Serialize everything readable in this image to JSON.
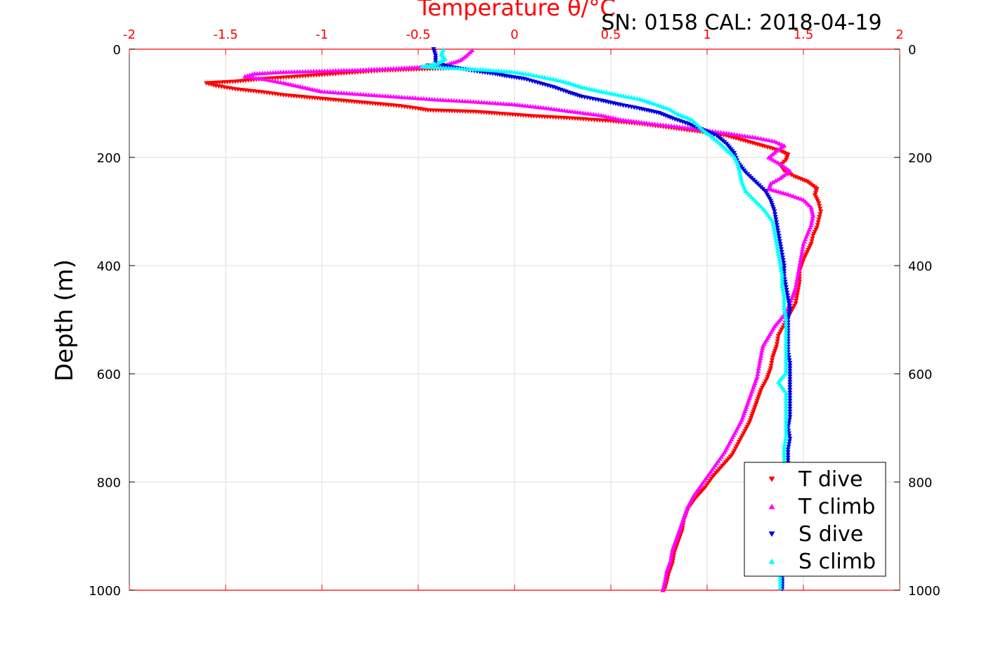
{
  "chart_data": {
    "type": "scatter",
    "title": "Temperature θ/°C",
    "subtitle": "SN: 0158  CAL: 2018-04-19",
    "xlabel": "Temperature θ/°C",
    "ylabel": "Depth (m)",
    "xlim": [
      -2,
      2
    ],
    "ylim": [
      0,
      1000
    ],
    "y_reversed": true,
    "x_axis_position": "top",
    "x_ticks": [
      "-2",
      "-1.5",
      "-1",
      "-0.5",
      "0",
      "0.5",
      "1",
      "1.5",
      "2"
    ],
    "y_ticks": [
      "0",
      "200",
      "400",
      "600",
      "800",
      "1000"
    ],
    "grid": true,
    "legend_placement": "bottom-right",
    "colors": {
      "axis_top": "#ff0000",
      "grid": "#dddddd"
    },
    "series": [
      {
        "name": "T dive",
        "color": "#ff0000",
        "marker": "triangle-down",
        "points": [
          [
            -0.45,
            30
          ],
          [
            -0.3,
            35
          ],
          [
            -0.55,
            38
          ],
          [
            -0.7,
            40
          ],
          [
            -0.9,
            45
          ],
          [
            -1.1,
            50
          ],
          [
            -1.3,
            55
          ],
          [
            -1.45,
            60
          ],
          [
            -1.6,
            63
          ],
          [
            -1.55,
            68
          ],
          [
            -1.45,
            74
          ],
          [
            -1.3,
            80
          ],
          [
            -1.2,
            85
          ],
          [
            -1.05,
            90
          ],
          [
            -0.9,
            95
          ],
          [
            -0.75,
            100
          ],
          [
            -0.6,
            105
          ],
          [
            -0.5,
            110
          ],
          [
            -0.45,
            113
          ],
          [
            -0.2,
            116
          ],
          [
            -0.05,
            120
          ],
          [
            0.1,
            124
          ],
          [
            0.3,
            128
          ],
          [
            0.5,
            133
          ],
          [
            0.65,
            138
          ],
          [
            0.8,
            145
          ],
          [
            0.95,
            152
          ],
          [
            1.1,
            160
          ],
          [
            1.2,
            170
          ],
          [
            1.3,
            180
          ],
          [
            1.38,
            188
          ],
          [
            1.42,
            195
          ],
          [
            1.41,
            205
          ],
          [
            1.38,
            215
          ],
          [
            1.4,
            225
          ],
          [
            1.45,
            235
          ],
          [
            1.52,
            245
          ],
          [
            1.57,
            258
          ],
          [
            1.56,
            270
          ],
          [
            1.58,
            285
          ],
          [
            1.59,
            300
          ],
          [
            1.58,
            315
          ],
          [
            1.57,
            330
          ],
          [
            1.55,
            345
          ],
          [
            1.54,
            360
          ],
          [
            1.52,
            375
          ],
          [
            1.5,
            390
          ],
          [
            1.48,
            410
          ],
          [
            1.48,
            430
          ],
          [
            1.47,
            450
          ],
          [
            1.46,
            470
          ],
          [
            1.43,
            490
          ],
          [
            1.4,
            510
          ],
          [
            1.37,
            530
          ],
          [
            1.36,
            550
          ],
          [
            1.34,
            570
          ],
          [
            1.33,
            590
          ],
          [
            1.31,
            610
          ],
          [
            1.28,
            630
          ],
          [
            1.26,
            650
          ],
          [
            1.24,
            670
          ],
          [
            1.22,
            690
          ],
          [
            1.19,
            710
          ],
          [
            1.16,
            730
          ],
          [
            1.13,
            750
          ],
          [
            1.08,
            770
          ],
          [
            1.03,
            790
          ],
          [
            0.99,
            810
          ],
          [
            0.94,
            830
          ],
          [
            0.9,
            850
          ],
          [
            0.88,
            870
          ],
          [
            0.87,
            890
          ],
          [
            0.85,
            910
          ],
          [
            0.83,
            930
          ],
          [
            0.82,
            950
          ],
          [
            0.8,
            970
          ],
          [
            0.79,
            985
          ],
          [
            0.78,
            998
          ]
        ]
      },
      {
        "name": "T climb",
        "color": "#ff00ff",
        "marker": "triangle-up",
        "points": [
          [
            -0.22,
            2
          ],
          [
            -0.25,
            12
          ],
          [
            -0.28,
            20
          ],
          [
            -0.35,
            28
          ],
          [
            -0.45,
            32
          ],
          [
            -0.6,
            35
          ],
          [
            -0.8,
            38
          ],
          [
            -1.0,
            40
          ],
          [
            -1.2,
            42
          ],
          [
            -1.35,
            45
          ],
          [
            -1.4,
            50
          ],
          [
            -1.3,
            55
          ],
          [
            -1.2,
            62
          ],
          [
            -1.1,
            70
          ],
          [
            -1.0,
            78
          ],
          [
            -0.8,
            83
          ],
          [
            -0.6,
            88
          ],
          [
            -0.4,
            93
          ],
          [
            -0.2,
            97
          ],
          [
            0.0,
            102
          ],
          [
            0.15,
            108
          ],
          [
            0.3,
            115
          ],
          [
            0.45,
            122
          ],
          [
            0.55,
            130
          ],
          [
            0.7,
            137
          ],
          [
            0.9,
            145
          ],
          [
            1.1,
            155
          ],
          [
            1.25,
            163
          ],
          [
            1.35,
            170
          ],
          [
            1.4,
            178
          ],
          [
            1.36,
            188
          ],
          [
            1.32,
            200
          ],
          [
            1.38,
            212
          ],
          [
            1.43,
            225
          ],
          [
            1.38,
            238
          ],
          [
            1.33,
            248
          ],
          [
            1.32,
            258
          ],
          [
            1.42,
            268
          ],
          [
            1.5,
            278
          ],
          [
            1.54,
            292
          ],
          [
            1.55,
            308
          ],
          [
            1.54,
            325
          ],
          [
            1.52,
            342
          ],
          [
            1.5,
            360
          ],
          [
            1.49,
            380
          ],
          [
            1.48,
            400
          ],
          [
            1.47,
            420
          ],
          [
            1.46,
            440
          ],
          [
            1.44,
            460
          ],
          [
            1.42,
            478
          ],
          [
            1.39,
            495
          ],
          [
            1.35,
            512
          ],
          [
            1.32,
            530
          ],
          [
            1.29,
            548
          ],
          [
            1.28,
            566
          ],
          [
            1.27,
            585
          ],
          [
            1.26,
            605
          ],
          [
            1.24,
            625
          ],
          [
            1.22,
            645
          ],
          [
            1.2,
            665
          ],
          [
            1.18,
            685
          ],
          [
            1.15,
            705
          ],
          [
            1.12,
            725
          ],
          [
            1.09,
            745
          ],
          [
            1.05,
            765
          ],
          [
            1.01,
            785
          ],
          [
            0.97,
            805
          ],
          [
            0.93,
            825
          ],
          [
            0.9,
            845
          ],
          [
            0.88,
            865
          ],
          [
            0.86,
            885
          ],
          [
            0.84,
            905
          ],
          [
            0.82,
            925
          ],
          [
            0.81,
            945
          ],
          [
            0.79,
            965
          ],
          [
            0.78,
            985
          ],
          [
            0.77,
            1000
          ]
        ]
      },
      {
        "name": "S dive",
        "color": "#0000dd",
        "marker": "triangle-down",
        "points": [
          [
            -0.42,
            0
          ],
          [
            -0.41,
            12
          ],
          [
            -0.41,
            25
          ],
          [
            -0.35,
            32
          ],
          [
            -0.28,
            36
          ],
          [
            -0.18,
            42
          ],
          [
            -0.1,
            46
          ],
          [
            -0.04,
            50
          ],
          [
            0.05,
            55
          ],
          [
            0.12,
            62
          ],
          [
            0.2,
            70
          ],
          [
            0.28,
            80
          ],
          [
            0.35,
            88
          ],
          [
            0.45,
            95
          ],
          [
            0.55,
            103
          ],
          [
            0.65,
            110
          ],
          [
            0.75,
            118
          ],
          [
            0.82,
            128
          ],
          [
            0.9,
            138
          ],
          [
            0.97,
            148
          ],
          [
            1.05,
            160
          ],
          [
            1.1,
            175
          ],
          [
            1.14,
            192
          ],
          [
            1.16,
            210
          ],
          [
            1.2,
            228
          ],
          [
            1.25,
            245
          ],
          [
            1.3,
            262
          ],
          [
            1.33,
            280
          ],
          [
            1.35,
            300
          ],
          [
            1.36,
            320
          ],
          [
            1.37,
            340
          ],
          [
            1.38,
            360
          ],
          [
            1.39,
            380
          ],
          [
            1.4,
            400
          ],
          [
            1.4,
            420
          ],
          [
            1.41,
            440
          ],
          [
            1.42,
            460
          ],
          [
            1.43,
            480
          ],
          [
            1.42,
            500
          ],
          [
            1.42,
            520
          ],
          [
            1.42,
            540
          ],
          [
            1.42,
            560
          ],
          [
            1.43,
            580
          ],
          [
            1.43,
            600
          ],
          [
            1.43,
            620
          ],
          [
            1.43,
            640
          ],
          [
            1.43,
            660
          ],
          [
            1.43,
            680
          ],
          [
            1.42,
            700
          ],
          [
            1.43,
            720
          ],
          [
            1.42,
            740
          ],
          [
            1.42,
            760
          ],
          [
            1.42,
            780
          ],
          [
            1.42,
            800
          ],
          [
            1.41,
            820
          ],
          [
            1.41,
            840
          ],
          [
            1.41,
            860
          ],
          [
            1.4,
            880
          ],
          [
            1.4,
            900
          ],
          [
            1.4,
            920
          ],
          [
            1.39,
            940
          ],
          [
            1.39,
            960
          ],
          [
            1.39,
            980
          ],
          [
            1.39,
            998
          ]
        ]
      },
      {
        "name": "S climb",
        "color": "#00ffff",
        "marker": "triangle-up",
        "points": [
          [
            -0.37,
            0
          ],
          [
            -0.38,
            10
          ],
          [
            -0.36,
            18
          ],
          [
            -0.4,
            26
          ],
          [
            -0.48,
            32
          ],
          [
            -0.3,
            35
          ],
          [
            -0.15,
            38
          ],
          [
            0.0,
            42
          ],
          [
            0.1,
            48
          ],
          [
            0.2,
            55
          ],
          [
            0.28,
            62
          ],
          [
            0.35,
            70
          ],
          [
            0.45,
            78
          ],
          [
            0.55,
            85
          ],
          [
            0.65,
            92
          ],
          [
            0.72,
            100
          ],
          [
            0.8,
            110
          ],
          [
            0.85,
            120
          ],
          [
            0.92,
            130
          ],
          [
            0.95,
            140
          ],
          [
            0.98,
            150
          ],
          [
            1.02,
            160
          ],
          [
            1.06,
            172
          ],
          [
            1.1,
            185
          ],
          [
            1.14,
            198
          ],
          [
            1.16,
            212
          ],
          [
            1.17,
            228
          ],
          [
            1.18,
            245
          ],
          [
            1.2,
            262
          ],
          [
            1.25,
            280
          ],
          [
            1.3,
            298
          ],
          [
            1.34,
            318
          ],
          [
            1.35,
            338
          ],
          [
            1.36,
            358
          ],
          [
            1.37,
            378
          ],
          [
            1.38,
            398
          ],
          [
            1.39,
            418
          ],
          [
            1.39,
            438
          ],
          [
            1.4,
            458
          ],
          [
            1.4,
            478
          ],
          [
            1.41,
            498
          ],
          [
            1.41,
            518
          ],
          [
            1.41,
            538
          ],
          [
            1.41,
            558
          ],
          [
            1.41,
            578
          ],
          [
            1.41,
            598
          ],
          [
            1.37,
            615
          ],
          [
            1.41,
            635
          ],
          [
            1.41,
            655
          ],
          [
            1.41,
            675
          ],
          [
            1.41,
            695
          ],
          [
            1.41,
            715
          ],
          [
            1.4,
            735
          ],
          [
            1.4,
            755
          ],
          [
            1.4,
            775
          ],
          [
            1.4,
            795
          ],
          [
            1.39,
            815
          ],
          [
            1.39,
            835
          ],
          [
            1.39,
            855
          ],
          [
            1.39,
            875
          ],
          [
            1.39,
            895
          ],
          [
            1.38,
            915
          ],
          [
            1.38,
            935
          ],
          [
            1.38,
            955
          ],
          [
            1.38,
            975
          ],
          [
            1.38,
            995
          ]
        ]
      }
    ]
  }
}
